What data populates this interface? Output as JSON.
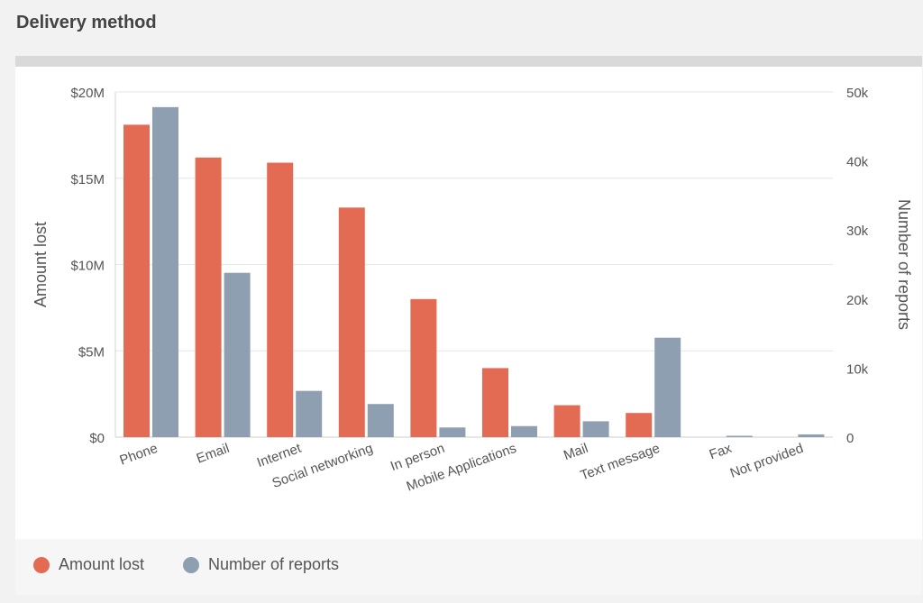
{
  "panel": {
    "title": "Delivery method"
  },
  "legend": {
    "amount_label": "Amount lost",
    "reports_label": "Number of reports"
  },
  "colors": {
    "amount": "#e46b53",
    "reports": "#8e9fb2",
    "grid": "#e6e6e6",
    "axis_text": "#555555"
  },
  "chart_data": {
    "type": "bar",
    "categories": [
      "Phone",
      "Email",
      "Internet",
      "Social networking",
      "In person",
      "Mobile Applications",
      "Mail",
      "Text message",
      "Fax",
      "Not provided"
    ],
    "series": [
      {
        "name": "Amount lost",
        "axis": "left",
        "values": [
          18100000,
          16200000,
          15900000,
          13300000,
          8000000,
          4000000,
          1850000,
          1400000,
          0,
          0
        ]
      },
      {
        "name": "Number of reports",
        "axis": "right",
        "values": [
          47800,
          23800,
          6700,
          4800,
          1400,
          1600,
          2300,
          14400,
          200,
          400
        ]
      }
    ],
    "ylabel": "Amount lost",
    "y2label": "Number of reports",
    "ylim": [
      0,
      20000000
    ],
    "y2lim": [
      0,
      50000
    ],
    "yticks": [
      "$0",
      "$5M",
      "$10M",
      "$15M",
      "$20M"
    ],
    "y2ticks": [
      "0",
      "10k",
      "20k",
      "30k",
      "40k",
      "50k"
    ],
    "grid": true,
    "legend_position": "bottom-left"
  }
}
